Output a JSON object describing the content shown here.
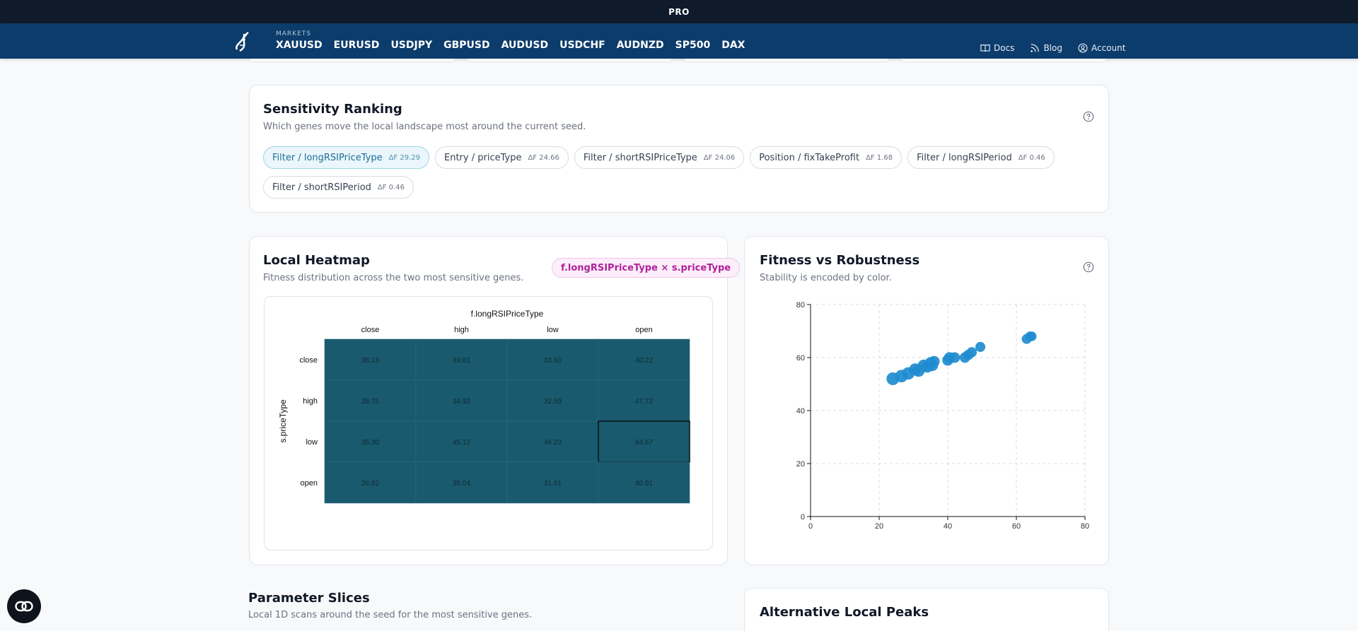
{
  "topbar": {
    "label": "PRO"
  },
  "nav": {
    "markets_label": "MARKETS",
    "markets": [
      "XAUUSD",
      "EURUSD",
      "USDJPY",
      "GBPUSD",
      "AUDUSD",
      "USDCHF",
      "AUDNZD",
      "SP500",
      "DAX"
    ],
    "links": {
      "docs": "Docs",
      "blog": "Blog",
      "account": "Account"
    }
  },
  "sensitivity": {
    "title": "Sensitivity Ranking",
    "subtitle": "Which genes move the local landscape most around the current seed.",
    "chips": [
      {
        "label": "Filter / longRSIPriceType",
        "delta": "ΔF 29.29",
        "active": true
      },
      {
        "label": "Entry / priceType",
        "delta": "ΔF 24.66",
        "active": false
      },
      {
        "label": "Filter / shortRSIPriceType",
        "delta": "ΔF 24.06",
        "active": false
      },
      {
        "label": "Position / fixTakeProfit",
        "delta": "ΔF 1.68",
        "active": false
      },
      {
        "label": "Filter / longRSIPeriod",
        "delta": "ΔF 0.46",
        "active": false
      },
      {
        "label": "Filter / shortRSIPeriod",
        "delta": "ΔF 0.46",
        "active": false
      }
    ]
  },
  "heatmap": {
    "title": "Local Heatmap",
    "subtitle": "Fitness distribution across the two most sensitive genes.",
    "badge": "f.longRSIPriceType × s.priceType"
  },
  "scatter": {
    "title": "Fitness vs Robustness",
    "subtitle": "Stability is encoded by color."
  },
  "slices": {
    "title": "Parameter Slices",
    "subtitle": "Local 1D scans around the seed for the most sensitive genes."
  },
  "alt_peaks": {
    "title": "Alternative Local Peaks"
  },
  "colors": {
    "topbar": "#0f1a2b",
    "nav": "#0c3c6b",
    "heat_cell": "#1a5a6e",
    "scatter_point": "#1f8ccf",
    "badge": "#b0219c",
    "chip_active": "#1b6f96"
  },
  "chart_data": [
    {
      "type": "heatmap",
      "title": "",
      "xlabel": "f.longRSIPriceType",
      "ylabel": "s.priceType",
      "x_categories": [
        "close",
        "high",
        "low",
        "open"
      ],
      "y_categories": [
        "close",
        "high",
        "low",
        "open"
      ],
      "values": [
        [
          36.13,
          49.81,
          33.6,
          40.22
        ],
        [
          28.75,
          34.92,
          32.59,
          47.72
        ],
        [
          35.3,
          45.12,
          46.23,
          64.67
        ],
        [
          26.82,
          35.04,
          31.61,
          40.91
        ]
      ],
      "highlight": {
        "row": 2,
        "col": 3
      }
    },
    {
      "type": "scatter",
      "title": "",
      "xlabel": "",
      "ylabel": "",
      "xlim": [
        0,
        80
      ],
      "ylim": [
        0,
        80
      ],
      "x_ticks": [
        0,
        20,
        40,
        60,
        80
      ],
      "y_ticks": [
        0,
        20,
        40,
        60,
        80
      ],
      "grid": true,
      "points": [
        {
          "x": 24,
          "y": 52
        },
        {
          "x": 26.5,
          "y": 53
        },
        {
          "x": 28.5,
          "y": 54
        },
        {
          "x": 30.5,
          "y": 55.5
        },
        {
          "x": 31.5,
          "y": 55
        },
        {
          "x": 33,
          "y": 57
        },
        {
          "x": 34,
          "y": 56.5
        },
        {
          "x": 35,
          "y": 58
        },
        {
          "x": 35.5,
          "y": 57
        },
        {
          "x": 36,
          "y": 58.5
        },
        {
          "x": 40,
          "y": 59
        },
        {
          "x": 40.5,
          "y": 60
        },
        {
          "x": 42,
          "y": 60
        },
        {
          "x": 45,
          "y": 60
        },
        {
          "x": 46,
          "y": 61
        },
        {
          "x": 47,
          "y": 62
        },
        {
          "x": 49.5,
          "y": 64
        },
        {
          "x": 63,
          "y": 67
        },
        {
          "x": 64,
          "y": 68
        },
        {
          "x": 64.5,
          "y": 68
        }
      ]
    }
  ]
}
